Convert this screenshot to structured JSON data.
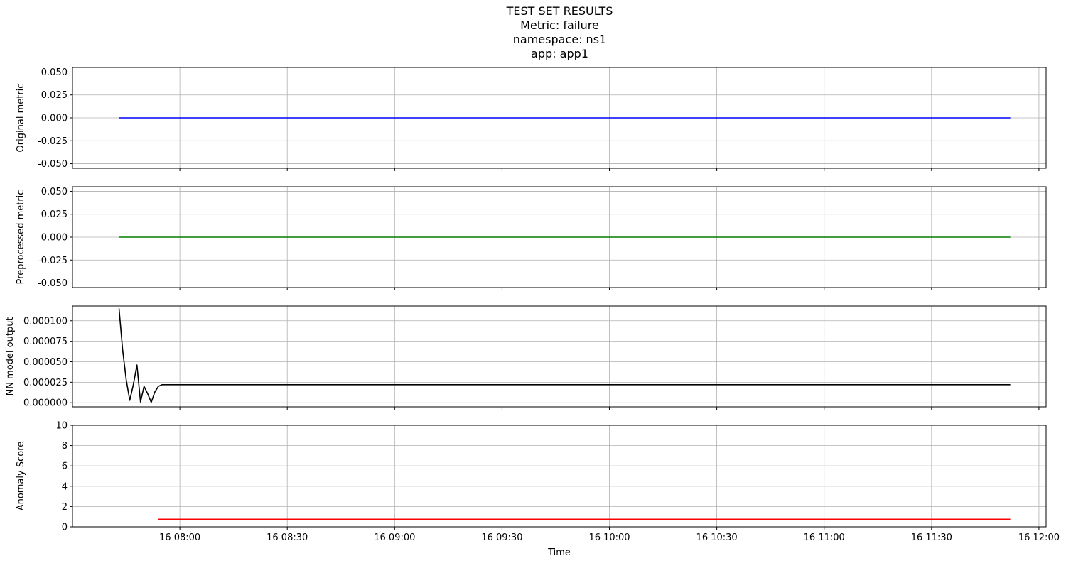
{
  "figure": {
    "title_lines": [
      "TEST SET RESULTS",
      "Metric: failure",
      "namespace: ns1",
      "app: app1"
    ],
    "xlabel": "Time"
  },
  "colors": {
    "original": "#0000ff",
    "preprocessed": "#008000",
    "nn_output": "#000000",
    "anomaly": "#ff0000",
    "grid": "#b0b0b0"
  },
  "chart_data": [
    {
      "type": "line",
      "ylabel": "Original metric",
      "ylim": [
        -0.055,
        0.055
      ],
      "yticks": [
        -0.05,
        -0.025,
        0.0,
        0.025,
        0.05
      ],
      "ytick_labels": [
        "-0.050",
        "-0.025",
        "0.000",
        "0.025",
        "0.050"
      ],
      "xlim": [
        "07:30",
        "12:02"
      ],
      "xticks": [
        "08:00",
        "08:30",
        "09:00",
        "09:30",
        "10:00",
        "10:30",
        "11:00",
        "11:30",
        "12:00"
      ],
      "xtick_labels": [],
      "grid": true,
      "series": [
        {
          "color": "original",
          "x": [
            "07:43",
            "11:52"
          ],
          "y": [
            0.0,
            0.0
          ]
        }
      ]
    },
    {
      "type": "line",
      "ylabel": "Preprocessed metric",
      "ylim": [
        -0.055,
        0.055
      ],
      "yticks": [
        -0.05,
        -0.025,
        0.0,
        0.025,
        0.05
      ],
      "ytick_labels": [
        "-0.050",
        "-0.025",
        "0.000",
        "0.025",
        "0.050"
      ],
      "xlim": [
        "07:30",
        "12:02"
      ],
      "xticks": [
        "08:00",
        "08:30",
        "09:00",
        "09:30",
        "10:00",
        "10:30",
        "11:00",
        "11:30",
        "12:00"
      ],
      "xtick_labels": [],
      "grid": true,
      "series": [
        {
          "color": "preprocessed",
          "x": [
            "07:43",
            "11:52"
          ],
          "y": [
            0.0,
            0.0
          ]
        }
      ]
    },
    {
      "type": "line",
      "ylabel": "NN model output",
      "ylim": [
        -5e-06,
        0.000118
      ],
      "yticks": [
        0.0,
        2.5e-05,
        5e-05,
        7.5e-05,
        0.0001
      ],
      "ytick_labels": [
        "0.000000",
        "0.000025",
        "0.000050",
        "0.000075",
        "0.000100"
      ],
      "xlim": [
        "07:30",
        "12:02"
      ],
      "xticks": [
        "08:00",
        "08:30",
        "09:00",
        "09:30",
        "10:00",
        "10:30",
        "11:00",
        "11:30",
        "12:00"
      ],
      "xtick_labels": [],
      "grid": true,
      "series": [
        {
          "color": "nn_output",
          "x": [
            "07:43",
            "07:44",
            "07:45",
            "07:46",
            "07:47",
            "07:48",
            "07:49",
            "07:50",
            "07:51",
            "07:52",
            "07:53",
            "07:54",
            "07:55",
            "11:52"
          ],
          "y": [
            0.000115,
            6.5e-05,
            2.8e-05,
            3e-06,
            2.2e-05,
            4.6e-05,
            1e-06,
            2e-05,
            1.1e-05,
            5e-07,
            1.3e-05,
            2e-05,
            2.2e-05,
            2.2e-05
          ]
        }
      ]
    },
    {
      "type": "line",
      "ylabel": "Anomaly Score",
      "ylim": [
        0,
        10
      ],
      "yticks": [
        0,
        2,
        4,
        6,
        8,
        10
      ],
      "ytick_labels": [
        "0",
        "2",
        "4",
        "6",
        "8",
        "10"
      ],
      "xlim": [
        "07:30",
        "12:02"
      ],
      "xticks": [
        "08:00",
        "08:30",
        "09:00",
        "09:30",
        "10:00",
        "10:30",
        "11:00",
        "11:30",
        "12:00"
      ],
      "xtick_labels": [
        "16 08:00",
        "16 08:30",
        "16 09:00",
        "16 09:30",
        "16 10:00",
        "16 10:30",
        "16 11:00",
        "16 11:30",
        "16 12:00"
      ],
      "grid": true,
      "series": [
        {
          "color": "anomaly",
          "x": [
            "07:54",
            "11:52"
          ],
          "y": [
            0.75,
            0.75
          ]
        }
      ]
    }
  ]
}
